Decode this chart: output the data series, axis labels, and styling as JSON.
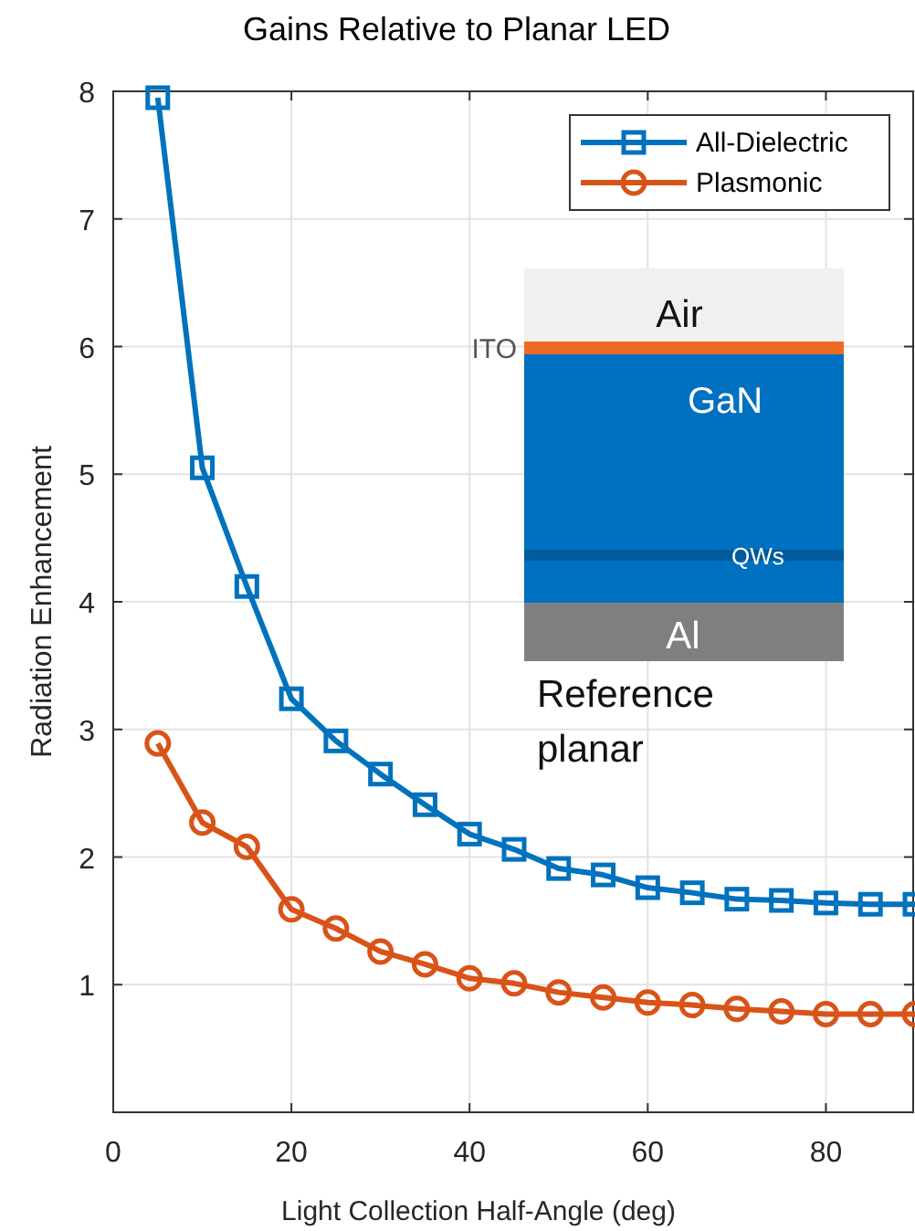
{
  "chart_data": {
    "type": "line",
    "title": "Gains Relative to Planar LED",
    "xlabel": "Light Collection Half-Angle (deg)",
    "ylabel": "Radiation Enhancement",
    "x": [
      5,
      10,
      15,
      20,
      25,
      30,
      35,
      40,
      45,
      50,
      55,
      60,
      65,
      70,
      75,
      80,
      85,
      90
    ],
    "series": [
      {
        "name": "All-Dielectric",
        "color": "#0072bd",
        "marker": "square",
        "values": [
          7.95,
          5.05,
          4.12,
          3.24,
          2.91,
          2.65,
          2.41,
          2.18,
          2.06,
          1.91,
          1.86,
          1.76,
          1.72,
          1.67,
          1.66,
          1.64,
          1.63,
          1.63
        ]
      },
      {
        "name": "Plasmonic",
        "color": "#d95319",
        "marker": "circle",
        "values": [
          2.89,
          2.27,
          2.08,
          1.59,
          1.44,
          1.26,
          1.16,
          1.05,
          1.01,
          0.94,
          0.9,
          0.86,
          0.84,
          0.81,
          0.79,
          0.77,
          0.77,
          0.77
        ]
      }
    ],
    "xlim": [
      0,
      90
    ],
    "ylim": [
      0,
      8
    ],
    "xticks": [
      0,
      20,
      40,
      60,
      80
    ],
    "yticks": [
      1,
      2,
      3,
      4,
      5,
      6,
      7,
      8
    ],
    "grid": true,
    "legend": "top right",
    "line_style": "solid",
    "annotations": [
      "Air",
      "ITO",
      "GaN",
      "QWs",
      "Al",
      "Reference planar"
    ]
  }
}
